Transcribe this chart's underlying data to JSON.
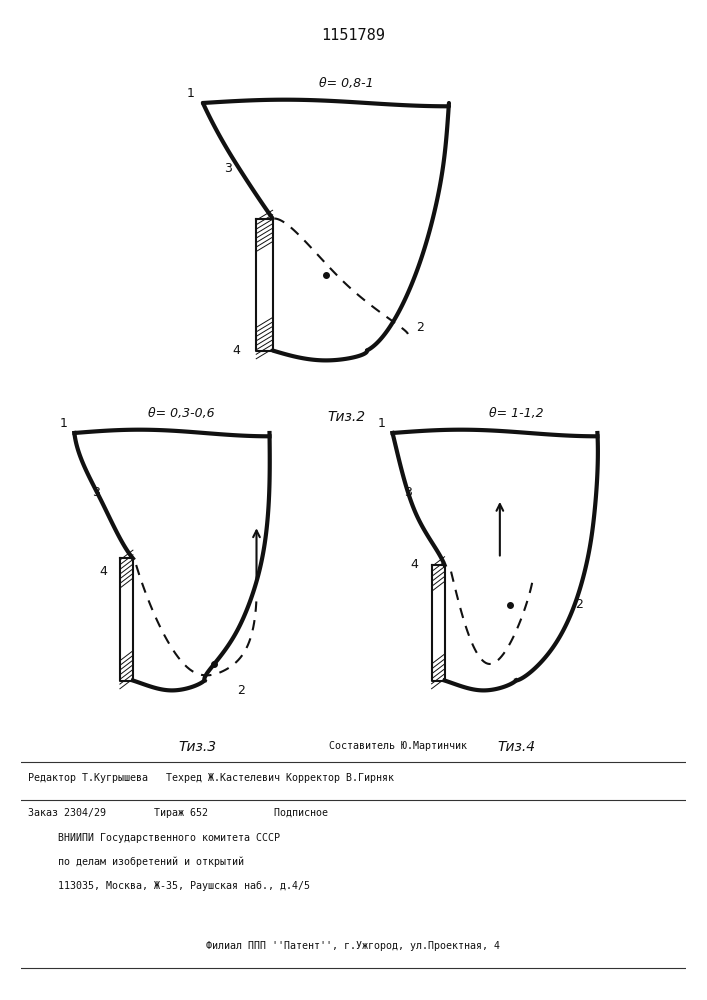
{
  "patent_number": "1151789",
  "bg_color": "#ffffff",
  "line_color": "#111111",
  "line_width": 3.0,
  "fig2": {
    "theta_label": "θ= 0,8-1",
    "caption": "Τиз.2"
  },
  "fig3": {
    "theta_label": "θ= 0,3-0,6",
    "caption": "Τиз.3"
  },
  "fig4": {
    "theta_label": "θ= 1-1,2",
    "caption": "Τиз.4"
  },
  "footer": {
    "line1": "               Составитель Ю.Мартинчик",
    "line2": "Редактор Т.Кугрышева   Техред Ж.Кастелевич Корректор В.Гирняк",
    "line3": "Заказ 2304/29        Тираж 652           Подписное",
    "line4": "     ВНИИПИ Государственного комитета СССР",
    "line5": "     по делам изобретений и открытий",
    "line6": "     113035, Москва, Ж-35, Раушская наб., д.4/5",
    "line7": "Филиал ППП ''Патент'', г.Ужгород, ул.Проектная, 4"
  }
}
